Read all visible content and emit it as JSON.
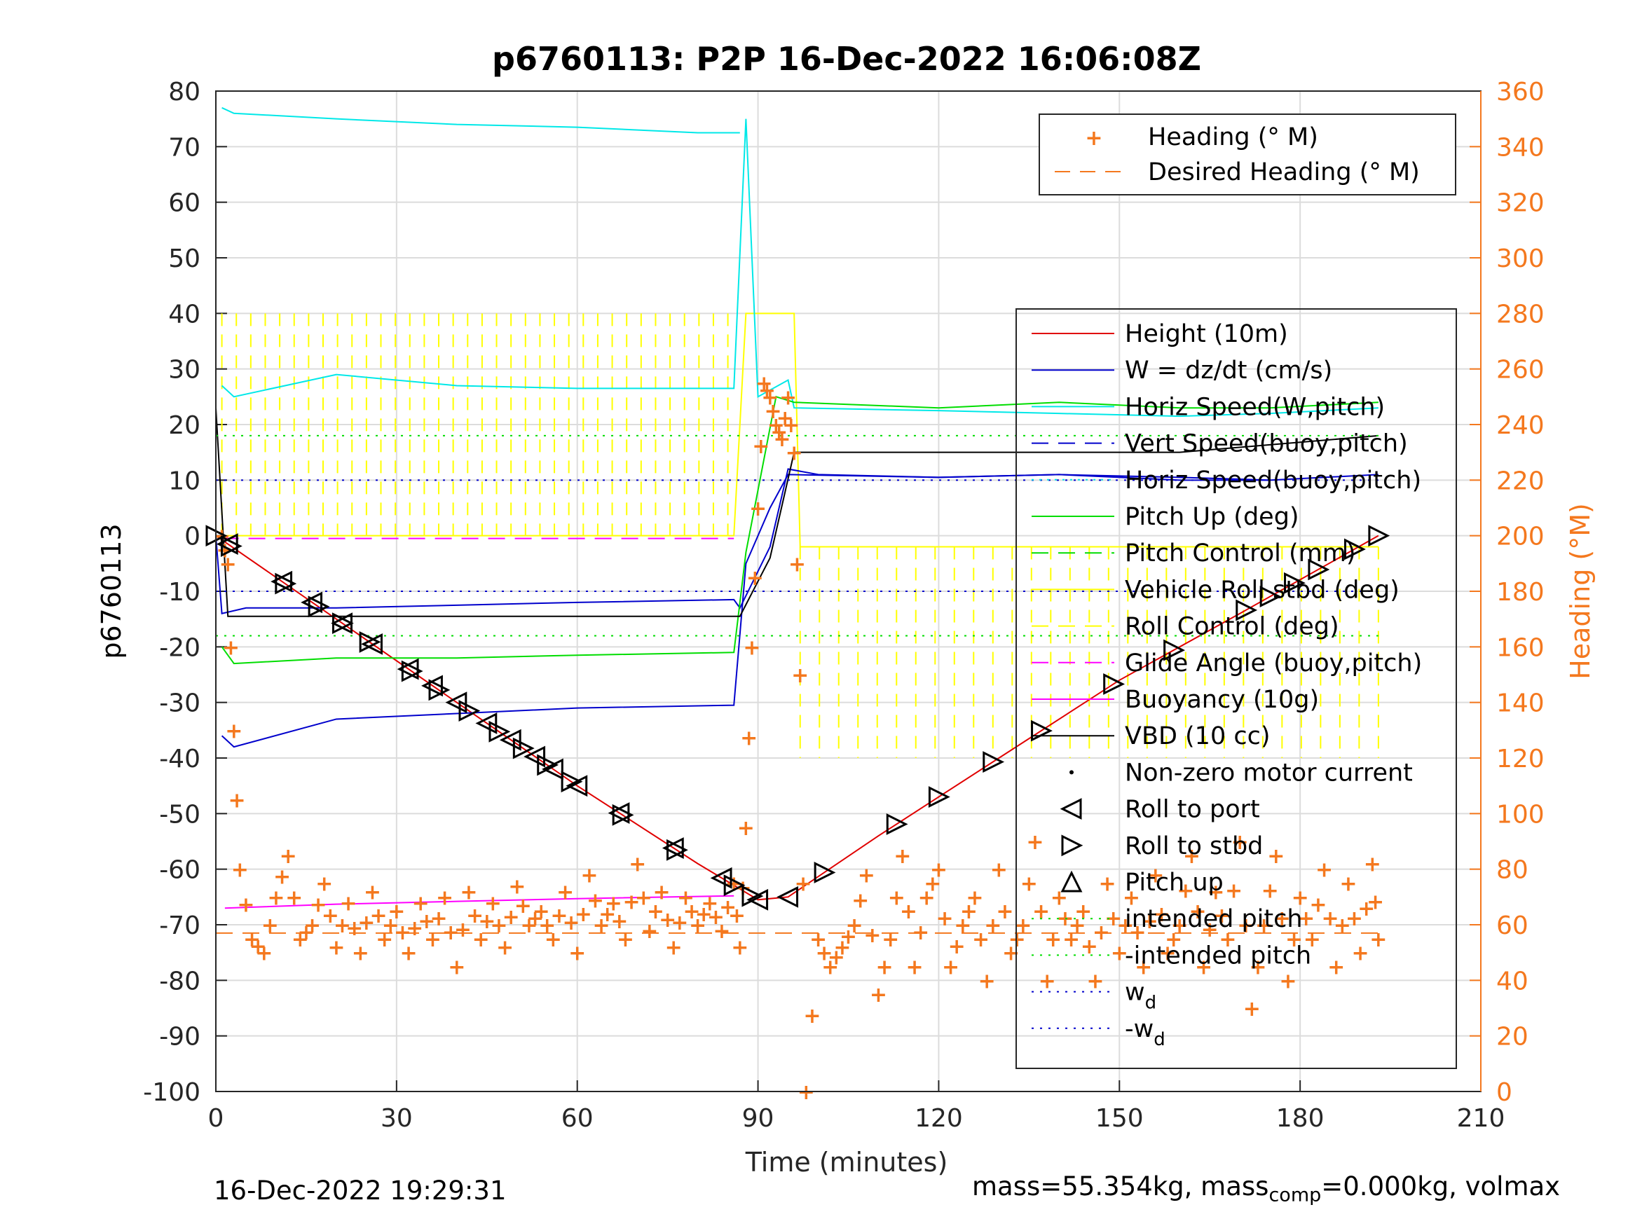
{
  "chart_data": {
    "type": "line",
    "title": "p6760113: P2P 16-Dec-2022 16:06:08Z",
    "xlabel": "Time (minutes)",
    "ylabel": "p6760113",
    "y2label": "Heading (°M)",
    "xlim": [
      0,
      210
    ],
    "ylim": [
      -100,
      80
    ],
    "y2lim": [
      0,
      360
    ],
    "xticks": [
      "0",
      "30",
      "60",
      "90",
      "120",
      "150",
      "180",
      "210"
    ],
    "yticks": [
      "80",
      "70",
      "60",
      "50",
      "40",
      "30",
      "20",
      "10",
      "0",
      "-10",
      "-20",
      "-30",
      "-40",
      "-50",
      "-60",
      "-70",
      "-80",
      "-90",
      "-100"
    ],
    "y2ticks": [
      "360",
      "340",
      "320",
      "300",
      "280",
      "260",
      "240",
      "220",
      "200",
      "180",
      "160",
      "140",
      "120",
      "100",
      "80",
      "60",
      "40",
      "20",
      "0"
    ],
    "grid": true,
    "colors": {
      "heading": "#f4781e",
      "height": "#e00000",
      "w": "#0000cc",
      "horiz_speed": "#00e8e8",
      "pitch": "#00dd00",
      "roll": "#ffff00",
      "glide": "#ff00ff",
      "vbd": "#000000",
      "axis2": "#f4781e"
    },
    "legend_top": {
      "position": "top-right",
      "entries": [
        "Heading (° M)",
        "Desired Heading (° M)"
      ]
    },
    "legend_main": {
      "position": "right",
      "entries": [
        "Height (10m)",
        "W = dz/dt (cm/s)",
        "Horiz Speed(W,pitch)",
        "Vert Speed(buoy,pitch)",
        "Horiz Speed(buoy,pitch)",
        "Pitch Up (deg)",
        "Pitch Control (mm)",
        "Vehicle Roll stbd (deg)",
        "Roll Control (deg)",
        "Glide Angle (buoy,pitch)",
        "Buoyancy (10g)",
        "VBD (10 cc)",
        "Non-zero motor current",
        "Roll to port",
        "Roll to stbd",
        "Pitch up",
        "intended pitch",
        "-intended pitch",
        "w",
        "-w"
      ],
      "subscripts": [
        "d",
        "d"
      ]
    },
    "series": [
      {
        "name": "Height (10m)",
        "x": [
          0,
          20,
          40,
          60,
          80,
          90,
          95,
          110,
          130,
          150,
          170,
          193
        ],
        "y": [
          0,
          -15,
          -30,
          -45,
          -59,
          -65.5,
          -65,
          -54,
          -40,
          -26,
          -14,
          0
        ]
      },
      {
        "name": "W = dz/dt (cm/s)",
        "x": [
          0,
          1,
          5,
          20,
          40,
          60,
          86,
          87,
          92,
          95,
          100,
          120,
          140,
          160,
          175,
          193
        ],
        "y": [
          0,
          -14,
          -13,
          -13,
          -12.5,
          -12,
          -11.5,
          -13,
          -2,
          12,
          11,
          10.5,
          11,
          10,
          10,
          11
        ]
      },
      {
        "name": "Horiz Speed(W,pitch)",
        "x": [
          1,
          3,
          20,
          40,
          60,
          86,
          88,
          90,
          95,
          96,
          120,
          140,
          160,
          175,
          193
        ],
        "y": [
          27,
          25,
          29,
          27,
          26.5,
          26.5,
          75,
          25,
          28,
          23,
          22.5,
          22,
          21.5,
          22,
          23
        ]
      },
      {
        "name": "Pitch Up (deg)",
        "x": [
          1,
          3,
          20,
          40,
          60,
          86,
          88,
          93,
          96,
          120,
          140,
          160,
          175,
          193
        ],
        "y": [
          -20,
          -23,
          -22,
          -22,
          -21.5,
          -21,
          -3,
          25,
          24,
          23,
          24,
          23,
          23,
          24
        ]
      },
      {
        "name": "Vehicle Roll stbd (deg)",
        "x": [
          1,
          3,
          20,
          40,
          60,
          86,
          88,
          92,
          95,
          120,
          140,
          160,
          175
        ],
        "y": [
          -36,
          -38,
          -33,
          -32,
          -31,
          -30.5,
          -5,
          5,
          11,
          10.5,
          11,
          10.5,
          10
        ]
      },
      {
        "name": "Horiz Speed(buoy,pitch)",
        "x": [
          1,
          3,
          20,
          40,
          60,
          80,
          87,
          88,
          90,
          96
        ],
        "y": [
          77,
          76,
          75,
          74,
          73.5,
          72.5,
          72.5,
          null,
          null,
          null
        ]
      },
      {
        "name": "Buoyancy (10g)",
        "x": [
          1.5,
          20,
          40,
          60,
          86
        ],
        "y": [
          -67,
          -66.3,
          -65.8,
          -65.3,
          -64.8
        ]
      },
      {
        "name": "VBD (10 cc)",
        "x": [
          0,
          2,
          20,
          50,
          87,
          92,
          96,
          120,
          160,
          193
        ],
        "y": [
          23,
          -14.5,
          -14.5,
          -14.5,
          -14.5,
          -4,
          15,
          15,
          15,
          18
        ]
      },
      {
        "name": "Glide Angle (buoy,pitch)",
        "x": [
          1,
          86
        ],
        "y": [
          -0.5,
          -0.5
        ]
      },
      {
        "name": "intended pitch",
        "x": [
          0,
          193
        ],
        "y": [
          18,
          18
        ]
      },
      {
        "name": "-intended pitch",
        "x": [
          0,
          193
        ],
        "y": [
          -18,
          -18
        ]
      },
      {
        "name": "w",
        "x": [
          0,
          193
        ],
        "y": [
          10,
          10
        ]
      },
      {
        "name": "-w",
        "x": [
          0,
          193
        ],
        "y": [
          -10,
          -10
        ]
      },
      {
        "name": "Desired Heading (° M)",
        "x": [
          0,
          193
        ],
        "y2": [
          57,
          57
        ]
      }
    ],
    "roll_markers": {
      "roll_to_port_x": [
        2,
        11,
        16,
        21,
        26,
        32,
        36,
        40,
        45,
        49,
        53,
        56,
        60,
        67,
        76,
        84,
        90,
        95
      ],
      "roll_to_stbd_x": [
        0,
        2.5,
        11.5,
        17,
        21,
        25.5,
        32.5,
        37,
        42,
        47,
        51,
        55,
        59,
        67.5,
        76.5,
        86,
        89,
        101,
        113,
        120,
        129,
        137,
        149,
        159,
        171,
        175,
        179,
        183,
        189,
        193
      ]
    },
    "heading_samples": {
      "x": [
        1,
        2,
        3,
        4,
        6,
        8,
        10,
        12,
        14,
        16,
        18,
        20,
        22,
        24,
        26,
        28,
        30,
        32,
        34,
        36,
        38,
        40,
        42,
        44,
        46,
        48,
        50,
        52,
        54,
        56,
        58,
        60,
        62,
        64,
        66,
        68,
        70,
        72,
        74,
        76,
        78,
        80,
        82,
        84,
        86,
        87,
        88,
        89,
        90,
        91,
        92,
        93,
        94,
        95,
        96,
        97,
        98,
        100,
        102,
        104,
        106,
        108,
        110,
        112,
        114,
        116,
        118,
        120,
        122,
        124,
        126,
        128,
        130,
        132,
        134,
        136,
        138,
        140,
        142,
        144,
        146,
        148,
        150,
        152,
        154,
        156,
        158,
        160,
        162,
        164,
        166,
        168,
        170,
        172,
        174,
        176,
        178,
        180,
        182,
        184,
        186,
        188,
        190,
        192,
        193
      ],
      "y2": [
        200,
        190,
        130,
        80,
        55,
        50,
        70,
        85,
        55,
        60,
        75,
        52,
        68,
        50,
        72,
        55,
        65,
        50,
        68,
        55,
        70,
        45,
        72,
        55,
        68,
        52,
        74,
        60,
        65,
        55,
        72,
        50,
        78,
        60,
        68,
        55,
        82,
        58,
        72,
        52,
        70,
        60,
        68,
        58,
        75,
        52,
        95,
        160,
        210,
        255,
        250,
        240,
        235,
        250,
        230,
        150,
        0,
        55,
        45,
        52,
        60,
        78,
        35,
        55,
        85,
        45,
        70,
        80,
        45,
        60,
        70,
        40,
        80,
        50,
        60,
        90,
        40,
        70,
        55,
        65,
        40,
        75,
        50,
        70,
        45,
        78,
        50,
        60,
        85,
        45,
        72,
        55,
        90,
        30,
        60,
        85,
        40,
        70,
        55,
        80,
        45,
        75,
        50,
        82,
        55
      ]
    }
  },
  "footer": {
    "timestamp": "16-Dec-2022 19:29:31",
    "mass_prefix": "mass=55.354kg, mass",
    "mass_sub": "comp",
    "mass_suffix": "=0.000kg, volmax"
  }
}
